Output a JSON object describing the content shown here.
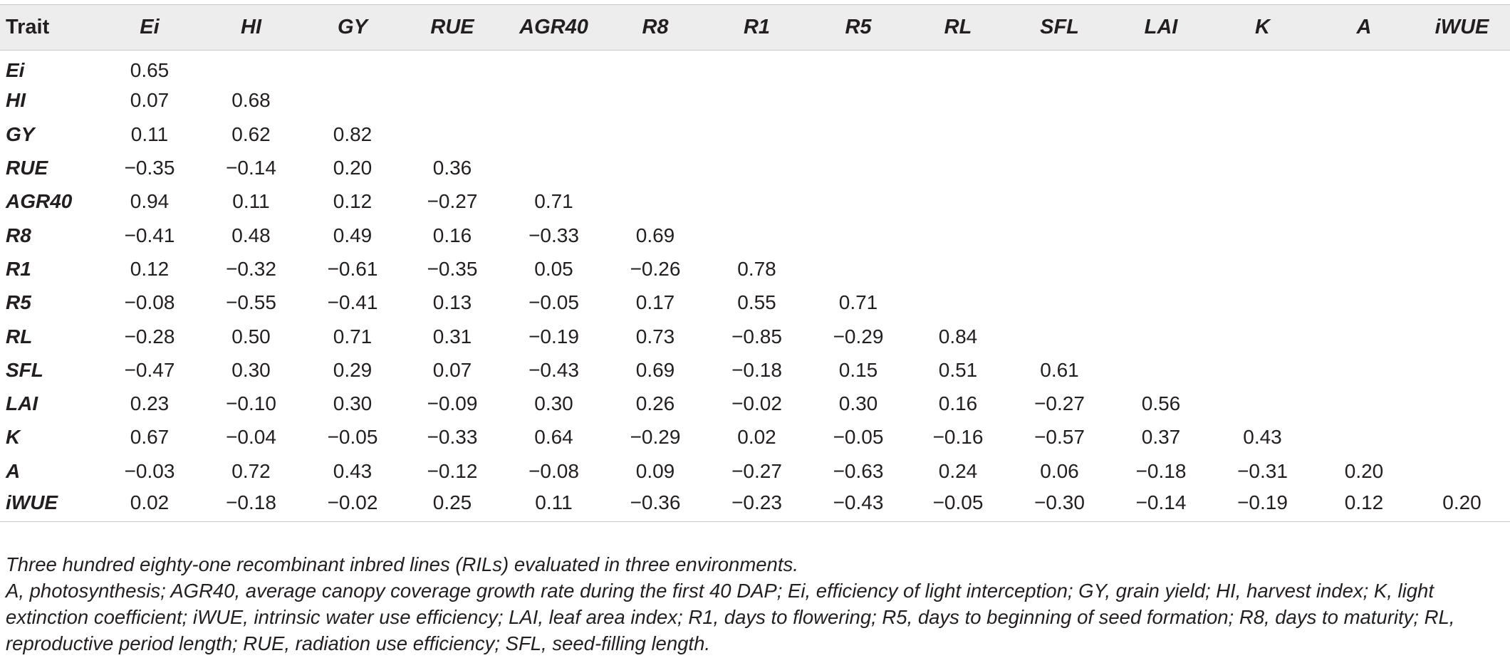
{
  "table": {
    "header": [
      "Trait",
      "Ei",
      "HI",
      "GY",
      "RUE",
      "AGR40",
      "R8",
      "R1",
      "R5",
      "RL",
      "SFL",
      "LAI",
      "K",
      "A",
      "iWUE"
    ],
    "rows": [
      {
        "label": "Ei",
        "values": [
          "0.65",
          "",
          "",
          "",
          "",
          "",
          "",
          "",
          "",
          "",
          "",
          "",
          "",
          ""
        ]
      },
      {
        "label": "HI",
        "values": [
          "0.07",
          "0.68",
          "",
          "",
          "",
          "",
          "",
          "",
          "",
          "",
          "",
          "",
          "",
          ""
        ]
      },
      {
        "label": "GY",
        "values": [
          "0.11",
          "0.62",
          "0.82",
          "",
          "",
          "",
          "",
          "",
          "",
          "",
          "",
          "",
          "",
          ""
        ]
      },
      {
        "label": "RUE",
        "values": [
          "−0.35",
          "−0.14",
          "0.20",
          "0.36",
          "",
          "",
          "",
          "",
          "",
          "",
          "",
          "",
          "",
          ""
        ]
      },
      {
        "label": "AGR40",
        "values": [
          "0.94",
          "0.11",
          "0.12",
          "−0.27",
          "0.71",
          "",
          "",
          "",
          "",
          "",
          "",
          "",
          "",
          ""
        ]
      },
      {
        "label": "R8",
        "values": [
          "−0.41",
          "0.48",
          "0.49",
          "0.16",
          "−0.33",
          "0.69",
          "",
          "",
          "",
          "",
          "",
          "",
          "",
          ""
        ]
      },
      {
        "label": "R1",
        "values": [
          "0.12",
          "−0.32",
          "−0.61",
          "−0.35",
          "0.05",
          "−0.26",
          "0.78",
          "",
          "",
          "",
          "",
          "",
          "",
          ""
        ]
      },
      {
        "label": "R5",
        "values": [
          "−0.08",
          "−0.55",
          "−0.41",
          "0.13",
          "−0.05",
          "0.17",
          "0.55",
          "0.71",
          "",
          "",
          "",
          "",
          "",
          ""
        ]
      },
      {
        "label": "RL",
        "values": [
          "−0.28",
          "0.50",
          "0.71",
          "0.31",
          "−0.19",
          "0.73",
          "−0.85",
          "−0.29",
          "0.84",
          "",
          "",
          "",
          "",
          ""
        ]
      },
      {
        "label": "SFL",
        "values": [
          "−0.47",
          "0.30",
          "0.29",
          "0.07",
          "−0.43",
          "0.69",
          "−0.18",
          "0.15",
          "0.51",
          "0.61",
          "",
          "",
          "",
          ""
        ]
      },
      {
        "label": "LAI",
        "values": [
          "0.23",
          "−0.10",
          "0.30",
          "−0.09",
          "0.30",
          "0.26",
          "−0.02",
          "0.30",
          "0.16",
          "−0.27",
          "0.56",
          "",
          "",
          ""
        ]
      },
      {
        "label": "K",
        "values": [
          "0.67",
          "−0.04",
          "−0.05",
          "−0.33",
          "0.64",
          "−0.29",
          "0.02",
          "−0.05",
          "−0.16",
          "−0.57",
          "0.37",
          "0.43",
          "",
          ""
        ]
      },
      {
        "label": "A",
        "values": [
          "−0.03",
          "0.72",
          "0.43",
          "−0.12",
          "−0.08",
          "0.09",
          "−0.27",
          "−0.63",
          "0.24",
          "0.06",
          "−0.18",
          "−0.31",
          "0.20",
          ""
        ]
      },
      {
        "label": "iWUE",
        "values": [
          "0.02",
          "−0.18",
          "−0.02",
          "0.25",
          "0.11",
          "−0.36",
          "−0.23",
          "−0.43",
          "−0.05",
          "−0.30",
          "−0.14",
          "−0.19",
          "0.12",
          "0.20"
        ]
      }
    ]
  },
  "notes": {
    "line1": "Three hundred eighty-one recombinant inbred lines (RILs) evaluated in three environments.",
    "line2": "A, photosynthesis; AGR40, average canopy coverage growth rate during the first 40 DAP; Ei, efficiency of light interception; GY, grain yield; HI, harvest index; K, light extinction coefficient; iWUE, intrinsic water use efficiency; LAI, leaf area index; R1, days to flowering; R5, days to beginning of seed formation; R8, days to maturity; RL, reproductive period length; RUE, radiation use efficiency; SFL, seed-filling length."
  }
}
